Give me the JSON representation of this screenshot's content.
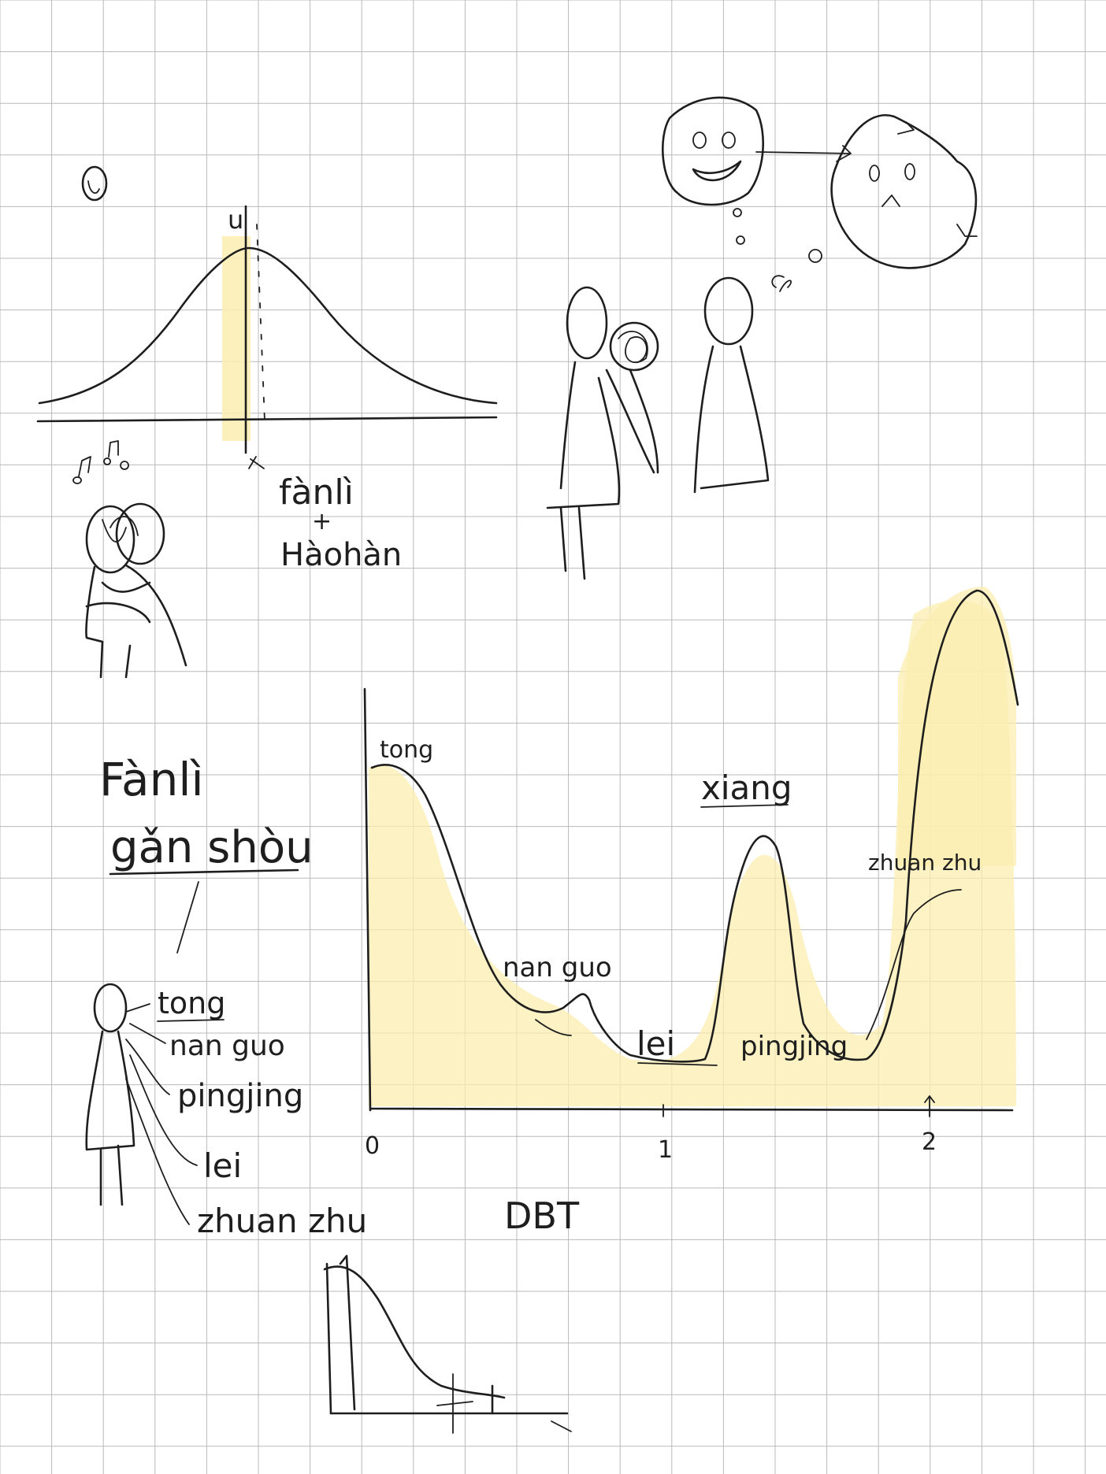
{
  "colors": {
    "background": "#ffffff",
    "grid": "#b9b9b9",
    "ink": "#1e1e1e",
    "highlight": "#fbeeb0"
  },
  "top_left": {
    "curve_label": "u",
    "annotation_1": "fànlì",
    "annotation_plus": "+",
    "annotation_2": "Hàohàn"
  },
  "left_panel": {
    "title_1": "Fànlì",
    "title_2": "gǎn shòu",
    "list": [
      "tong",
      "nan guo",
      "pingjing",
      "lei",
      "zhuan zhu"
    ]
  },
  "chart_data": {
    "type": "line",
    "xlabel": "DBT",
    "x_ticks": [
      "0",
      "1",
      "2"
    ],
    "annotations": [
      "tong",
      "nan guo",
      "lei",
      "pingjing",
      "xiang",
      "zhuan zhu"
    ]
  }
}
